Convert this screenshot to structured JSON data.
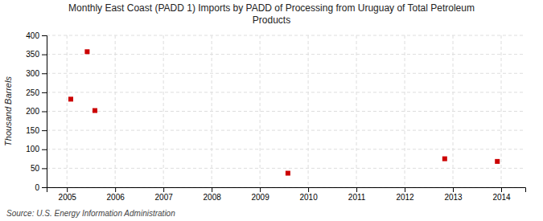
{
  "chart_data": {
    "type": "scatter",
    "title": "Monthly East Coast (PADD 1) Imports by PADD of Processing from Uruguay of Total Petroleum\nProducts",
    "y_label": "Thousand Barrels",
    "annotation": "Source: U.S. Energy Information Administration",
    "x": [
      2005.08,
      2005.42,
      2005.58,
      2009.58,
      2012.83,
      2013.92
    ],
    "values": [
      232,
      357,
      202,
      37,
      75,
      68
    ],
    "color": "#cc0000",
    "marker": "square",
    "xlim": [
      2004.58,
      2014.5
    ],
    "ylim": [
      0,
      400
    ],
    "xticks": [
      2005,
      2006,
      2007,
      2008,
      2009,
      2010,
      2011,
      2012,
      2013,
      2014
    ],
    "yticks": [
      0,
      50,
      100,
      150,
      200,
      250,
      300,
      350,
      400
    ],
    "grid": true
  }
}
